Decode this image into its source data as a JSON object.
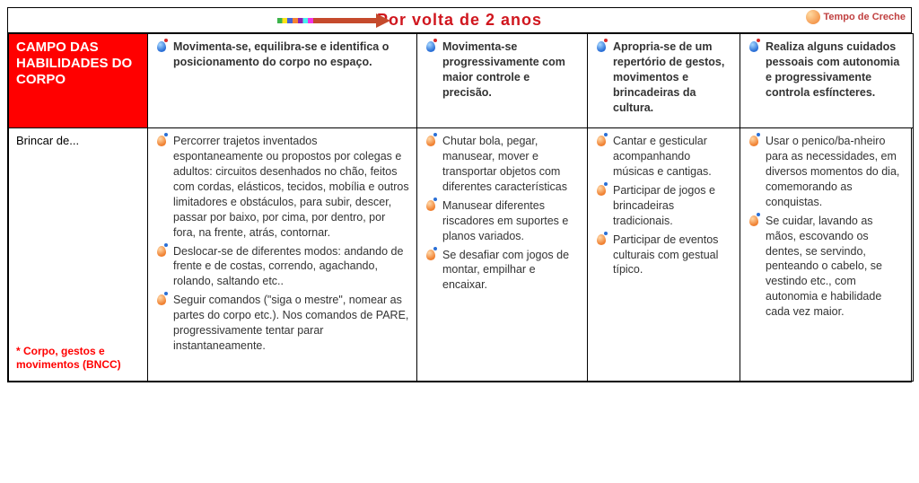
{
  "title": "Por volta de 2 anos",
  "logo_text": "Tempo de Creche",
  "columns": {
    "widths": [
      "155px",
      "300px",
      "190px",
      "170px",
      "193px"
    ]
  },
  "header": {
    "row_label": "Campo das habilidades do corpo",
    "cells": [
      "Movimenta-se,  equilibra-se e identifica o posicionamento  do corpo no espaço.",
      "Movimenta-se progressivamente com maior controle e precisão.",
      "Apropria-se de um repertório de gestos, movimentos e brincadeiras da cultura.",
      "Realiza alguns cuidados pessoais com autonomia e progressivamente controla esfíncteres."
    ]
  },
  "body": {
    "row_label_top": "Brincar de...",
    "row_label_note": "* Corpo, gestos e movimentos (BNCC)",
    "cells": [
      [
        "Percorrer trajetos inventados espontaneamente ou propostos por colegas e adultos: circuitos desenhados no chão, feitos com cordas, elásticos, tecidos, mobília e outros limitadores e obstáculos, para subir, descer, passar por baixo, por cima, por dentro, por fora, na frente, atrás, contornar.",
        "Deslocar-se de diferentes modos: andando de frente e de costas, correndo, agachando, rolando, saltando etc..",
        "Seguir comandos (\"siga o mestre\", nomear as partes do corpo etc.). Nos comandos de PARE, progressivamente tentar parar instantaneamente."
      ],
      [
        "Chutar bola, pegar, manusear, mover e transportar objetos com diferentes características",
        "Manusear diferentes riscadores em suportes e planos variados.",
        "Se desafiar com jogos de montar, empilhar e encaixar."
      ],
      [
        "Cantar e gesticular acompanhando músicas e cantigas.",
        "Participar de jogos e brincadeiras tradicionais.",
        "Participar de eventos culturais com gestual típico."
      ],
      [
        "Usar o penico/ba-nheiro para as necessidades, em diversos momentos do dia, comemorando as conquistas.",
        "Se cuidar, lavando as mãos, escovando os dentes, se servindo, penteando o cabelo, se vestindo etc., com autonomia e habilidade cada vez maior."
      ]
    ]
  }
}
